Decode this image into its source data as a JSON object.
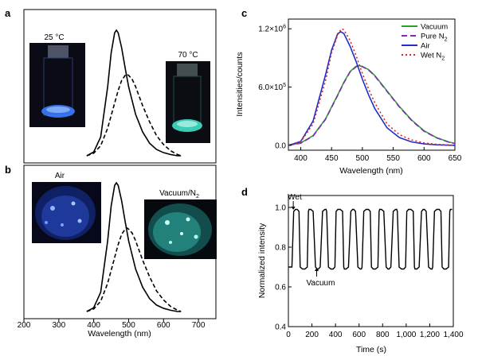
{
  "figure": {
    "panel_letters": [
      "a",
      "b",
      "c",
      "d"
    ]
  },
  "chart_data": [
    {
      "panel": "a",
      "type": "line",
      "title": "",
      "xlabel": "",
      "ylabel": "",
      "xlim": [
        200,
        750
      ],
      "photos": [
        {
          "label": "25 °C",
          "glow": "#2a6cff"
        },
        {
          "label": "70 °C",
          "glow": "#3fe0c8"
        }
      ],
      "series": [
        {
          "style": "solid",
          "color": "#000000",
          "x": [
            380,
            400,
            420,
            440,
            450,
            460,
            465,
            470,
            480,
            490,
            500,
            520,
            540,
            560,
            580,
            600,
            620,
            640,
            650
          ],
          "y": [
            0.0,
            0.03,
            0.15,
            0.55,
            0.82,
            0.98,
            1.0,
            0.98,
            0.86,
            0.7,
            0.55,
            0.33,
            0.19,
            0.1,
            0.05,
            0.025,
            0.01,
            0.0,
            0.0
          ]
        },
        {
          "style": "dashed",
          "color": "#000000",
          "x": [
            380,
            400,
            420,
            440,
            460,
            470,
            480,
            490,
            495,
            500,
            510,
            520,
            540,
            560,
            580,
            600,
            620,
            640,
            650
          ],
          "y": [
            0.0,
            0.02,
            0.08,
            0.22,
            0.42,
            0.52,
            0.6,
            0.64,
            0.65,
            0.64,
            0.61,
            0.55,
            0.4,
            0.27,
            0.16,
            0.09,
            0.04,
            0.01,
            0.0
          ]
        }
      ]
    },
    {
      "panel": "b",
      "type": "line",
      "title": "",
      "xlabel": "Wavelength (nm)",
      "ylabel": "",
      "xlim": [
        200,
        750
      ],
      "xticks": [
        200,
        300,
        400,
        500,
        600,
        700
      ],
      "photos": [
        {
          "label": "Air",
          "glow": "#2a6cff"
        },
        {
          "label": "Vacuum/N",
          "label_sub": "2",
          "glow": "#3fe0c8"
        }
      ],
      "series": [
        {
          "style": "solid",
          "color": "#000000",
          "x": [
            380,
            400,
            420,
            440,
            450,
            460,
            465,
            470,
            480,
            490,
            500,
            520,
            540,
            560,
            580,
            600,
            620,
            640,
            650
          ],
          "y": [
            0.0,
            0.03,
            0.15,
            0.55,
            0.82,
            0.98,
            1.0,
            0.98,
            0.86,
            0.7,
            0.55,
            0.33,
            0.19,
            0.1,
            0.05,
            0.025,
            0.01,
            0.0,
            0.0
          ]
        },
        {
          "style": "dashed",
          "color": "#000000",
          "x": [
            380,
            400,
            420,
            440,
            460,
            470,
            480,
            490,
            495,
            500,
            510,
            520,
            540,
            560,
            580,
            600,
            620,
            640,
            650
          ],
          "y": [
            0.0,
            0.02,
            0.08,
            0.22,
            0.42,
            0.52,
            0.6,
            0.64,
            0.65,
            0.64,
            0.61,
            0.55,
            0.4,
            0.27,
            0.16,
            0.09,
            0.04,
            0.01,
            0.0
          ]
        }
      ]
    },
    {
      "panel": "c",
      "type": "line",
      "title": "",
      "xlabel": "Wavelength (nm)",
      "ylabel": "Intensities/counts",
      "xlim": [
        380,
        650
      ],
      "ylim": [
        -50000,
        1300000
      ],
      "xticks": [
        400,
        450,
        500,
        550,
        600,
        650
      ],
      "yticks": [
        {
          "value": 0,
          "label": "0.0"
        },
        {
          "value": 600000,
          "label": "6.0×10",
          "exp": "5"
        },
        {
          "value": 1200000,
          "label": "1.2×10",
          "exp": "6"
        }
      ],
      "legend_position": "top-right",
      "series": [
        {
          "name": "Vacuum",
          "color": "#2ca02c",
          "dash": "",
          "x": [
            380,
            400,
            420,
            440,
            460,
            470,
            480,
            490,
            495,
            500,
            510,
            520,
            540,
            560,
            580,
            600,
            620,
            640,
            650
          ],
          "y": [
            0,
            25000,
            100000,
            270000,
            520000,
            650000,
            760000,
            815000,
            820000,
            812000,
            780000,
            720000,
            560000,
            400000,
            260000,
            150000,
            80000,
            35000,
            20000
          ]
        },
        {
          "name": "Pure N",
          "name_sub": "2",
          "color": "#7b2fb0",
          "dash": "7,4",
          "x": [
            380,
            400,
            420,
            440,
            460,
            470,
            480,
            490,
            495,
            500,
            510,
            520,
            540,
            560,
            580,
            600,
            620,
            640,
            650
          ],
          "y": [
            0,
            22000,
            95000,
            265000,
            515000,
            645000,
            755000,
            810000,
            818000,
            810000,
            775000,
            715000,
            555000,
            395000,
            255000,
            145000,
            78000,
            33000,
            18000
          ]
        },
        {
          "name": "Air",
          "color": "#1f2fc8",
          "dash": "",
          "x": [
            380,
            400,
            420,
            440,
            450,
            460,
            465,
            470,
            480,
            490,
            500,
            510,
            520,
            540,
            560,
            580,
            600,
            620,
            640,
            650
          ],
          "y": [
            0,
            40000,
            250000,
            720000,
            980000,
            1150000,
            1170000,
            1150000,
            1020000,
            860000,
            680000,
            520000,
            380000,
            180000,
            80000,
            35000,
            15000,
            6000,
            2000,
            0
          ]
        },
        {
          "name": "Wet N",
          "name_sub": "2",
          "color": "#d62728",
          "dash": "2,3",
          "x": [
            380,
            400,
            420,
            440,
            450,
            460,
            466,
            470,
            480,
            490,
            500,
            510,
            520,
            540,
            560,
            580,
            600,
            620,
            640,
            650
          ],
          "y": [
            0,
            35000,
            220000,
            660000,
            950000,
            1140000,
            1200000,
            1190000,
            1080000,
            920000,
            740000,
            580000,
            440000,
            220000,
            110000,
            55000,
            25000,
            10000,
            4000,
            0
          ]
        }
      ]
    },
    {
      "panel": "d",
      "type": "line",
      "title": "",
      "xlabel": "Time (s)",
      "ylabel": "Normalized intensity",
      "xlim": [
        0,
        1400
      ],
      "ylim": [
        0.4,
        1.06
      ],
      "xticks": [
        {
          "value": 0,
          "label": "0"
        },
        {
          "value": 200,
          "label": "200"
        },
        {
          "value": 400,
          "label": "400"
        },
        {
          "value": 600,
          "label": "600"
        },
        {
          "value": 800,
          "label": "800"
        },
        {
          "value": 1000,
          "label": "1,000"
        },
        {
          "value": 1200,
          "label": "1,200"
        },
        {
          "value": 1400,
          "label": "1,400"
        }
      ],
      "yticks": [
        {
          "value": 0.4,
          "label": "0.4"
        },
        {
          "value": 0.6,
          "label": "0.6"
        },
        {
          "value": 0.8,
          "label": "0.8"
        },
        {
          "value": 1.0,
          "label": "1.0"
        }
      ],
      "annotations": [
        {
          "text": "Wet",
          "x": 55,
          "y": 1.0
        },
        {
          "text": "Vacuum",
          "x": 240,
          "y": 0.7
        }
      ],
      "series": [
        {
          "color": "#000000",
          "x": [
            0,
            10,
            30,
            45,
            60,
            75,
            90,
            100,
            120,
            140,
            160,
            170,
            175,
            190,
            210,
            230,
            245,
            255,
            270,
            290,
            310,
            320,
            325,
            340,
            360,
            380,
            395,
            405,
            420,
            440,
            460,
            470,
            475,
            490,
            510,
            530,
            545,
            555,
            570,
            590,
            610,
            620,
            625,
            640,
            660,
            680,
            695,
            705,
            720,
            740,
            760,
            770,
            775,
            790,
            810,
            830,
            845,
            855,
            870,
            890,
            910,
            920,
            925,
            940,
            960,
            980,
            995,
            1005,
            1020,
            1040,
            1060,
            1070,
            1075,
            1090,
            1110,
            1130,
            1145,
            1155,
            1170,
            1190,
            1210,
            1220,
            1225,
            1240,
            1260,
            1280,
            1295,
            1305,
            1320,
            1340,
            1360,
            1370,
            1375,
            1390
          ],
          "y": [
            0.7,
            0.7,
            0.7,
            0.98,
            0.99,
            0.99,
            0.98,
            0.7,
            0.69,
            0.69,
            0.7,
            0.98,
            0.99,
            0.99,
            0.98,
            0.7,
            0.69,
            0.69,
            0.7,
            0.98,
            0.99,
            0.99,
            0.98,
            0.7,
            0.69,
            0.69,
            0.7,
            0.98,
            0.99,
            0.99,
            0.98,
            0.7,
            0.69,
            0.69,
            0.7,
            0.98,
            0.99,
            0.99,
            0.98,
            0.7,
            0.69,
            0.69,
            0.7,
            0.98,
            0.99,
            0.99,
            0.98,
            0.7,
            0.69,
            0.69,
            0.7,
            0.98,
            0.99,
            0.99,
            0.98,
            0.7,
            0.69,
            0.69,
            0.7,
            0.98,
            0.99,
            0.99,
            0.98,
            0.7,
            0.69,
            0.69,
            0.7,
            0.98,
            0.99,
            0.99,
            0.98,
            0.7,
            0.69,
            0.69,
            0.7,
            0.98,
            0.99,
            0.99,
            0.98,
            0.7,
            0.69,
            0.69,
            0.7,
            0.98,
            0.99,
            0.99,
            0.98,
            0.7,
            0.69,
            0.69,
            0.7,
            0.98,
            0.99,
            0.99
          ]
        }
      ]
    }
  ]
}
